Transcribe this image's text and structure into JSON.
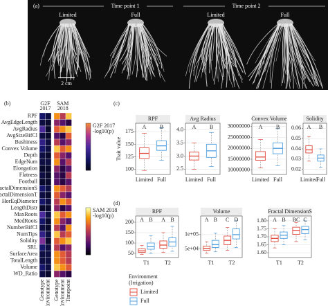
{
  "panel_labels": {
    "a": "(a)",
    "b": "(b)",
    "c": "(c)",
    "d": "(d)"
  },
  "photo": {
    "time_points": [
      "Time point 1",
      "Time point 2"
    ],
    "treatments": [
      "Limited",
      "Full",
      "Limited",
      "Full"
    ],
    "scale_bar": "2 cm"
  },
  "chart_data": [
    {
      "type": "heatmap",
      "rows": [
        "RPF",
        "AvgEdgeLength",
        "AvgRadius",
        "AvgSizeBifCl",
        "Bushiness",
        "Convex Volume",
        "Depth",
        "EdgeNum",
        "Elongation",
        "Flatness",
        "Football",
        "FractalDimensionS",
        "FractalDimensionT",
        "HorEqDiameter",
        "LengthDistr",
        "MaxRoots",
        "MedRoots",
        "NumberBifCl",
        "NumTips",
        "Solidity",
        "SRL",
        "SurfaceArea",
        "TotalLength",
        "Volume",
        "WD_Ratio"
      ],
      "groups": [
        {
          "lines": [
            "G2F",
            "2017"
          ],
          "columns": [
            "Genotype",
            "Environment"
          ],
          "colorbar": [
            "G2F 2017",
            "-log10(p)"
          ],
          "colors": [
            "#05051a",
            "#16166b",
            "#4b2a9e",
            "#b0378f",
            "#f0843a"
          ]
        },
        {
          "lines": [
            "SAM",
            "2018"
          ],
          "columns": [
            "Genotype",
            "Environment",
            "Timepoint"
          ],
          "colorbar": [
            "SAM 2018",
            "-log10(p)"
          ],
          "colors": [
            "#000004",
            "#420a68",
            "#932667",
            "#dd513a",
            "#fca50a",
            "#fcffa4"
          ]
        }
      ],
      "clim": [
        0,
        8
      ],
      "values": [
        [
          2,
          1,
          6,
          4,
          7
        ],
        [
          1,
          0.5,
          3,
          2,
          1
        ],
        [
          4,
          0.5,
          5,
          6,
          7
        ],
        [
          1,
          0.5,
          2,
          1,
          5
        ],
        [
          3,
          1,
          4,
          2,
          3
        ],
        [
          2,
          1,
          7,
          5,
          6
        ],
        [
          1,
          0.5,
          5,
          3,
          2
        ],
        [
          1,
          1,
          6,
          2,
          4
        ],
        [
          0.5,
          0.5,
          3,
          1,
          2
        ],
        [
          1,
          0.5,
          2,
          1,
          4
        ],
        [
          0.5,
          0.5,
          2,
          1,
          2
        ],
        [
          2,
          1,
          6,
          5,
          4
        ],
        [
          1,
          0.5,
          5,
          3,
          2
        ],
        [
          2,
          1,
          4,
          6,
          5
        ],
        [
          0.5,
          0.5,
          3,
          1,
          2
        ],
        [
          4,
          1,
          7,
          5,
          6
        ],
        [
          2,
          0.5,
          6,
          3,
          2
        ],
        [
          1,
          0.5,
          4,
          2,
          6
        ],
        [
          3,
          1,
          7,
          4,
          5
        ],
        [
          5,
          0.5,
          5,
          6,
          7
        ],
        [
          2,
          1,
          4,
          2,
          3
        ],
        [
          1,
          1,
          6,
          5,
          4
        ],
        [
          1,
          1,
          6,
          5,
          4
        ],
        [
          2,
          1,
          7,
          6,
          5
        ],
        [
          1,
          0.5,
          3,
          2,
          1
        ]
      ]
    },
    {
      "type": "box",
      "title": "RPF",
      "ylabel": "Trait value",
      "categories": [
        "Limited",
        "Full"
      ],
      "colors": [
        "#e0483b",
        "#4f9fe0"
      ],
      "letters": [
        "A",
        "B"
      ],
      "boxes": [
        {
          "min": 98,
          "q1": 122,
          "median": 132,
          "q3": 143,
          "max": 172
        },
        {
          "min": 118,
          "q1": 138,
          "median": 147,
          "q3": 157,
          "max": 183
        }
      ],
      "ylim": [
        90,
        192
      ],
      "yticks": [
        100,
        125,
        150,
        175
      ]
    },
    {
      "type": "box",
      "title": "Avg Radius",
      "categories": [
        "Limited",
        "Full"
      ],
      "colors": [
        "#e0483b",
        "#4f9fe0"
      ],
      "letters": [
        "A",
        "B"
      ],
      "boxes": [
        {
          "min": 2.5,
          "q1": 2.85,
          "median": 3.0,
          "q3": 3.15,
          "max": 3.5
        },
        {
          "min": 2.6,
          "q1": 2.95,
          "median": 3.2,
          "q3": 3.45,
          "max": 3.9
        }
      ],
      "ylim": [
        2.3,
        4.25
      ],
      "yticks": [
        2.5,
        {
          "value": 3,
          "label": "3.0"
        },
        3.5,
        {
          "value": 4,
          "label": "4.0"
        }
      ]
    },
    {
      "type": "box",
      "title": "Convex Volume",
      "categories": [
        "Limited",
        "Full"
      ],
      "colors": [
        "#e0483b",
        "#4f9fe0"
      ],
      "letters": [
        "A",
        "B"
      ],
      "boxes": [
        {
          "min": 11000000,
          "q1": 14500000,
          "median": 16000000,
          "q3": 18500000,
          "max": 24000000
        },
        {
          "min": 12000000,
          "q1": 17500000,
          "median": 20000000,
          "q3": 22500000,
          "max": 29000000
        }
      ],
      "ylim": [
        8000000,
        31500000
      ],
      "yticks": [
        10000000,
        15000000,
        20000000,
        25000000,
        30000000
      ]
    },
    {
      "type": "box",
      "title": "Solidity",
      "categories": [
        "Limited",
        "Full"
      ],
      "colors": [
        "#e0483b",
        "#4f9fe0"
      ],
      "letters": [
        "A",
        "B"
      ],
      "boxes": [
        {
          "min": 0.028,
          "q1": 0.036,
          "median": 0.039,
          "q3": 0.043,
          "max": 0.052
        },
        {
          "min": 0.022,
          "q1": 0.028,
          "median": 0.031,
          "q3": 0.034,
          "max": 0.04
        }
      ],
      "ylim": [
        0.015,
        0.065
      ],
      "yticks": [
        0.02,
        0.03,
        0.04,
        0.05,
        0.06
      ]
    },
    {
      "type": "grouped-box",
      "title": "RPF",
      "categories": [
        "T1",
        "T2"
      ],
      "legend_title": [
        "Environment",
        "(Irrigation)"
      ],
      "series": [
        {
          "name": "Limited",
          "color": "#e0483b",
          "letters": [
            "A",
            "A"
          ],
          "boxes": [
            {
              "min": 45,
              "q1": 55,
              "median": 62,
              "q3": 72,
              "max": 88
            },
            {
              "min": 55,
              "q1": 75,
              "median": 90,
              "q3": 110,
              "max": 150
            }
          ]
        },
        {
          "name": "Full",
          "color": "#4f9fe0",
          "letters": [
            "B",
            "B"
          ],
          "boxes": [
            {
              "min": 50,
              "q1": 70,
              "median": 82,
              "q3": 100,
              "max": 135
            },
            {
              "min": 60,
              "q1": 85,
              "median": 105,
              "q3": 125,
              "max": 180
            }
          ]
        }
      ],
      "ylim": [
        30,
        230
      ],
      "yticks": [
        50,
        100,
        150,
        200
      ]
    },
    {
      "type": "grouped-box",
      "title": "Volume",
      "categories": [
        "T1",
        "T2"
      ],
      "series": [
        {
          "color": "#e0483b",
          "letters": [
            "A",
            "C"
          ],
          "boxes": [
            {
              "min": 35000,
              "q1": 45000,
              "median": 52000,
              "q3": 60000,
              "max": 75000
            },
            {
              "min": 45000,
              "q1": 65000,
              "median": 80000,
              "q3": 95000,
              "max": 125000
            }
          ]
        },
        {
          "color": "#4f9fe0",
          "letters": [
            "B",
            "D"
          ],
          "boxes": [
            {
              "min": 40000,
              "q1": 55000,
              "median": 65000,
              "q3": 80000,
              "max": 105000
            },
            {
              "min": 55000,
              "q1": 85000,
              "median": 100000,
              "q3": 120000,
              "max": 150000
            }
          ]
        }
      ],
      "ylim": [
        20000,
        165000
      ],
      "yticks": [
        {
          "value": 50000,
          "label": "5e+04"
        },
        {
          "value": 100000,
          "label": "1e+05"
        }
      ]
    },
    {
      "type": "grouped-box",
      "title": "Fractal DimensionS",
      "categories": [
        "T1",
        "T2"
      ],
      "series": [
        {
          "color": "#e0483b",
          "letters": [
            "A",
            "BC"
          ],
          "boxes": [
            {
              "min": 1.63,
              "q1": 1.67,
              "median": 1.69,
              "q3": 1.71,
              "max": 1.75
            },
            {
              "min": 1.67,
              "q1": 1.715,
              "median": 1.74,
              "q3": 1.76,
              "max": 1.79
            }
          ]
        },
        {
          "color": "#4f9fe0",
          "letters": [
            "B",
            "C"
          ],
          "boxes": [
            {
              "min": 1.65,
              "q1": 1.69,
              "median": 1.71,
              "q3": 1.73,
              "max": 1.77
            },
            {
              "min": 1.68,
              "q1": 1.72,
              "median": 1.745,
              "q3": 1.765,
              "max": 1.8
            }
          ]
        }
      ],
      "ylim": [
        1.57,
        1.83
      ],
      "yticks": [
        {
          "value": 1.6,
          "label": "1.60"
        },
        1.65,
        {
          "value": 1.7,
          "label": "1.70"
        },
        1.75,
        {
          "value": 1.8,
          "label": "1.80"
        }
      ]
    }
  ]
}
